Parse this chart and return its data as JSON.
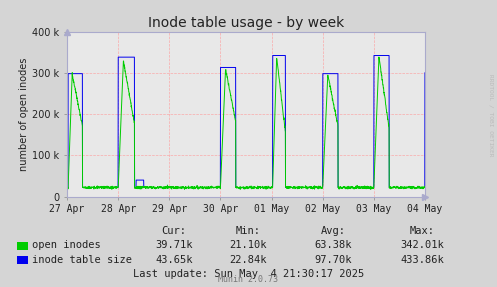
{
  "title": "Inode table usage - by week",
  "ylabel": "number of open inodes",
  "bg_color": "#d5d5d5",
  "plot_bg_color": "#e8e8e8",
  "grid_color": "#ff9999",
  "ylim": [
    0,
    400000
  ],
  "yticks": [
    0,
    100000,
    200000,
    300000,
    400000
  ],
  "xtick_labels": [
    "27 Apr",
    "28 Apr",
    "29 Apr",
    "30 Apr",
    "01 May",
    "02 May",
    "03 May",
    "04 May"
  ],
  "legend_labels": [
    "open inodes",
    "inode table size"
  ],
  "legend_colors": [
    "#00cc00",
    "#0000ee"
  ],
  "stats_header": [
    "Cur:",
    "Min:",
    "Avg:",
    "Max:"
  ],
  "stats_open": [
    "39.71k",
    "21.10k",
    "63.38k",
    "342.01k"
  ],
  "stats_table": [
    "43.65k",
    "22.84k",
    "97.70k",
    "433.86k"
  ],
  "last_update": "Last update: Sun May  4 21:30:17 2025",
  "munin_label": "Munin 2.0.73",
  "rrdtool_label": "RRDTOOL / TOBI OETIKER",
  "title_fontsize": 10,
  "axis_fontsize": 7,
  "tick_fontsize": 7,
  "stats_fontsize": 7.5
}
